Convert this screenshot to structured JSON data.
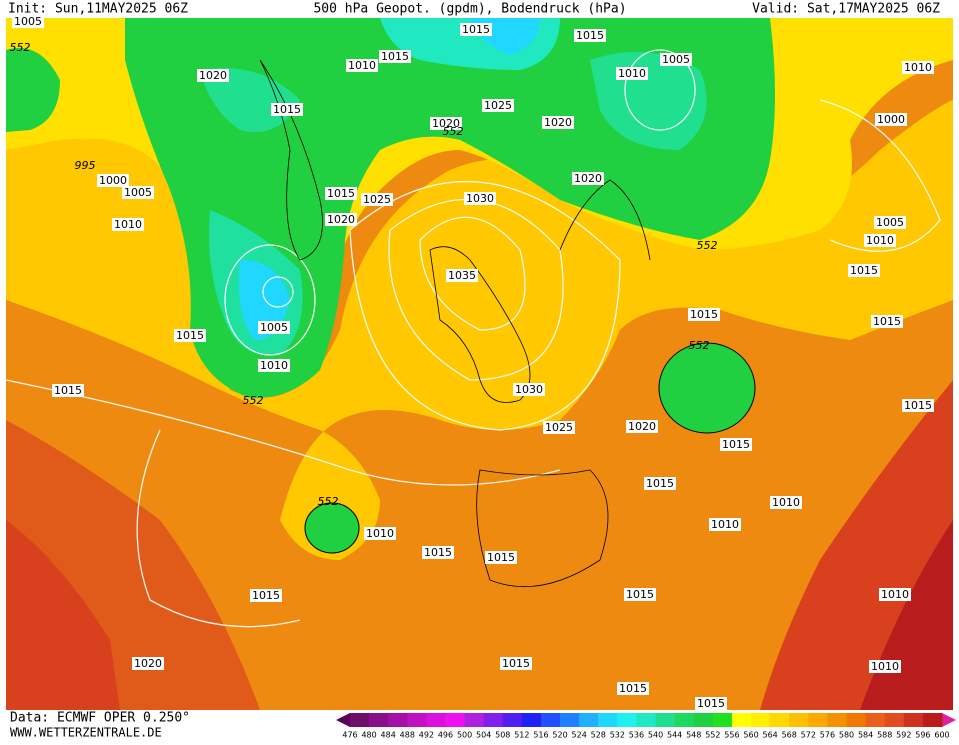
{
  "header": {
    "init": "Init: Sun,11MAY2025 06Z",
    "title": "500 hPa Geopot. (gpdm), Bodendruck (hPa)",
    "valid": "Valid: Sat,17MAY2025 06Z"
  },
  "footer": {
    "data_source": "Data: ECMWF OPER 0.250°",
    "website": "WWW.WETTERZENTRALE.DE"
  },
  "isobar_labels": [
    1005,
    552,
    1015,
    1015,
    1010,
    1015,
    1020,
    1005,
    1010,
    1010,
    1015,
    1025,
    1020,
    1020,
    552,
    1000,
    995,
    1000,
    1005,
    1030,
    1020,
    1015,
    1025,
    1020,
    1010,
    552,
    1005,
    1010,
    1015,
    1035,
    1015,
    1015,
    1005,
    1015,
    552,
    1010,
    1015,
    552,
    1030,
    1015,
    1025,
    1020,
    1015,
    1015,
    552,
    1010,
    1010,
    1010,
    1015,
    1015,
    1010,
    1015,
    1015,
    1020,
    1015,
    1010,
    1015,
    1015
  ],
  "colorbar": {
    "levels": [
      476,
      480,
      484,
      488,
      492,
      496,
      500,
      504,
      508,
      512,
      516,
      520,
      524,
      528,
      532,
      536,
      540,
      544,
      548,
      552,
      556,
      560,
      564,
      568,
      572,
      576,
      580,
      584,
      588,
      592,
      596,
      600
    ],
    "colors": [
      "#6e0f6e",
      "#8a108a",
      "#a410a4",
      "#c010c0",
      "#dc10dc",
      "#f010f0",
      "#b020e0",
      "#8020e8",
      "#5020f0",
      "#2020f8",
      "#2050ff",
      "#2080ff",
      "#20b0ff",
      "#20d8ff",
      "#20f0f0",
      "#20e8c0",
      "#20e090",
      "#20d860",
      "#20d040",
      "#20e020",
      "#ffff00",
      "#fff000",
      "#ffd800",
      "#ffc000",
      "#ffa800",
      "#f59000",
      "#ee7800",
      "#e86018",
      "#e04c20",
      "#d03020",
      "#b81c1c"
    ]
  }
}
